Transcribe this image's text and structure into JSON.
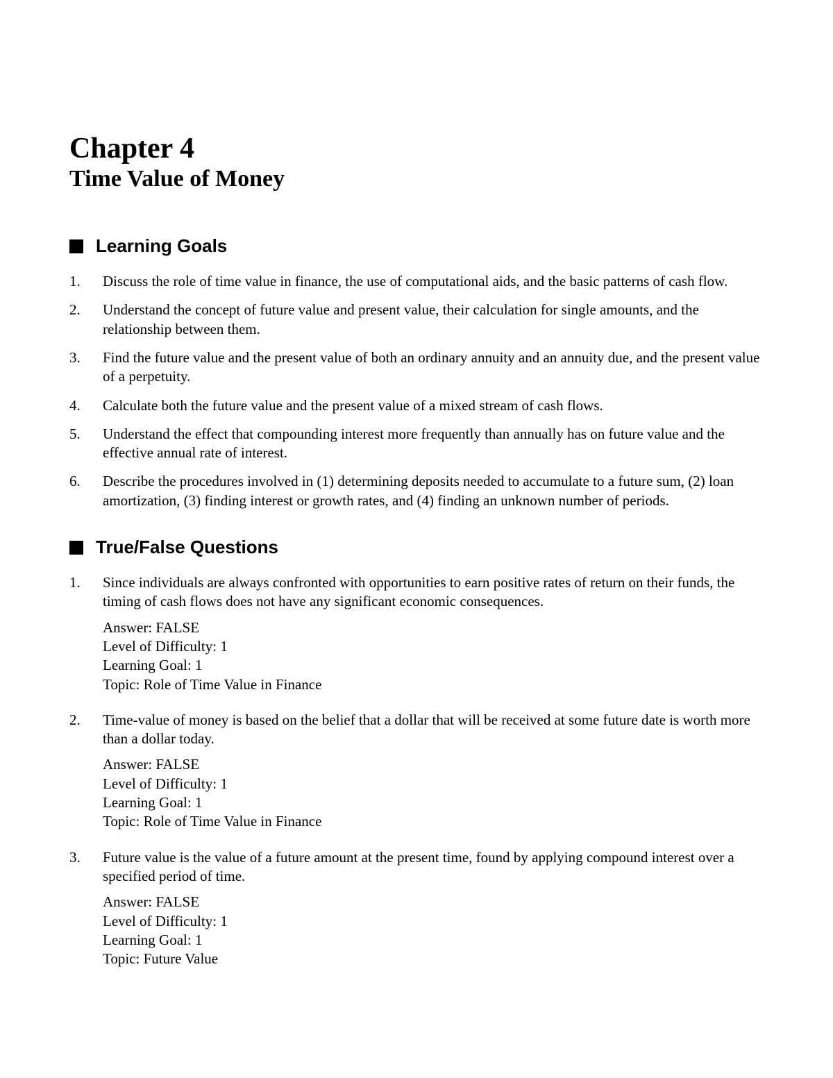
{
  "chapter": {
    "number": "Chapter 4",
    "title": "Time Value of Money"
  },
  "sections": {
    "learning_goals": {
      "title": "Learning Goals",
      "items": [
        {
          "num": "1.",
          "text": "Discuss the role of time value in finance, the use of computational aids, and the basic patterns of cash flow."
        },
        {
          "num": "2.",
          "text": "Understand the concept of future value and present value, their calculation for single amounts, and the relationship between them."
        },
        {
          "num": "3.",
          "text": "Find the future value and the present value of both an ordinary annuity and an annuity due, and the present value of a perpetuity."
        },
        {
          "num": "4.",
          "text": "Calculate both the future value and the present value of a mixed stream of cash flows."
        },
        {
          "num": "5.",
          "text": "Understand the effect that compounding interest more frequently than annually has on future value and the effective annual rate of interest."
        },
        {
          "num": "6.",
          "text": "Describe the procedures involved in (1) determining deposits needed to accumulate to a future sum, (2) loan amortization, (3) finding interest or growth rates, and (4) finding an unknown number of periods."
        }
      ]
    },
    "true_false": {
      "title": "True/False Questions",
      "questions": [
        {
          "num": "1.",
          "text": "Since individuals are always confronted with opportunities to earn positive rates of return on their funds, the timing of cash flows does not have any significant economic consequences.",
          "answer": "Answer:  FALSE",
          "difficulty": "Level of Difficulty: 1",
          "goal": "Learning Goal: 1",
          "topic": "Topic: Role of Time Value in Finance"
        },
        {
          "num": "2.",
          "text": "Time-value of money is based on the belief that a dollar that will be received at some future date is worth more than a dollar today.",
          "answer": "Answer:  FALSE",
          "difficulty": "Level of Difficulty: 1",
          "goal": "Learning Goal: 1",
          "topic": "Topic: Role of Time Value in Finance"
        },
        {
          "num": "3.",
          "text": "Future value is the value of a future amount at the present time, found by applying compound interest over a specified period of time.",
          "answer": "Answer:  FALSE",
          "difficulty": "Level of Difficulty: 1",
          "goal": "Learning Goal: 1",
          "topic": "Topic: Future Value"
        }
      ]
    }
  }
}
